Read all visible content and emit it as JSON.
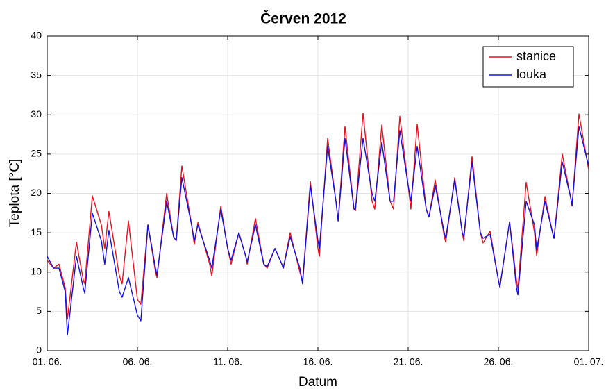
{
  "chart_data": {
    "type": "line",
    "title": "Červen 2012",
    "x_label": "Datum",
    "y_label": "Teplota [°C]",
    "x": [
      1,
      1.35,
      1.65,
      2,
      2.12,
      2.62,
      3,
      3.08,
      3.5,
      4,
      4.19,
      4.42,
      5,
      5.15,
      5.5,
      6,
      6.19,
      6.58,
      7,
      7.08,
      7.62,
      8,
      8.15,
      8.46,
      9,
      9.15,
      9.35,
      10,
      10.12,
      10.62,
      11,
      11.19,
      11.62,
      12,
      12.08,
      12.54,
      13,
      13.19,
      13.62,
      14,
      14.08,
      14.46,
      15,
      15.15,
      15.58,
      16,
      16.08,
      16.54,
      17,
      17.12,
      17.5,
      18,
      18.08,
      18.5,
      19,
      19.15,
      19.54,
      20,
      20.19,
      20.54,
      21,
      21.15,
      21.5,
      22,
      22.15,
      22.5,
      23,
      23.08,
      23.58,
      24,
      24.08,
      24.54,
      25,
      25.15,
      25.54,
      26,
      26.08,
      26.62,
      27,
      27.08,
      27.54,
      28,
      28.12,
      28.58,
      29,
      29.08,
      29.54,
      30,
      30.08,
      30.46,
      31
    ],
    "series": [
      {
        "name": "stanice",
        "color": "#e8101a",
        "values": [
          11.5,
          10.5,
          11,
          8,
          4,
          13.8,
          9,
          8.5,
          19.7,
          16,
          13,
          17.7,
          9.5,
          8.5,
          16.5,
          6.5,
          5.9,
          16,
          10,
          9.3,
          20,
          14.5,
          14,
          23.5,
          16,
          13.5,
          16.3,
          11,
          9.5,
          18.4,
          13,
          11,
          15,
          12,
          11,
          16.8,
          11,
          10.5,
          13,
          11,
          10.5,
          15,
          10,
          8.8,
          21.5,
          13,
          12,
          27,
          19,
          16.5,
          28.5,
          18,
          17.8,
          30.2,
          19,
          18,
          28.7,
          19,
          18,
          29.8,
          21,
          18,
          28.8,
          18,
          17,
          21.7,
          14.5,
          13.8,
          22,
          15,
          14,
          24.7,
          15,
          13.7,
          15.2,
          9,
          8.1,
          16.4,
          9,
          7.8,
          21.4,
          15,
          12.1,
          19.6,
          15,
          14.3,
          25,
          19.5,
          18.4,
          30.1,
          23
        ]
      },
      {
        "name": "louka",
        "color": "#1010e0",
        "values": [
          12,
          10.5,
          10.5,
          7.5,
          2,
          12,
          8,
          7.3,
          17.5,
          14,
          11,
          15.3,
          7.5,
          6.8,
          9.3,
          4.5,
          3.8,
          16,
          10.5,
          9.6,
          19,
          14.5,
          14,
          22,
          16,
          14,
          16,
          11.5,
          10.5,
          18,
          13,
          11.5,
          15,
          12,
          11.3,
          16,
          11,
          10.7,
          13,
          11,
          10.5,
          14.5,
          10.5,
          8.5,
          21,
          14,
          13,
          26,
          19,
          16.5,
          27,
          18,
          18,
          27,
          20,
          19,
          26.5,
          19,
          19,
          28,
          21,
          19,
          26,
          18,
          17,
          21,
          15,
          14.3,
          21.7,
          15,
          14.5,
          24,
          15,
          14.3,
          14.8,
          9,
          8.1,
          16.4,
          8,
          7.1,
          19,
          16,
          12.8,
          19,
          15,
          14.3,
          24,
          19.5,
          18.5,
          28.5,
          23.5
        ]
      }
    ],
    "xlim": [
      1,
      31
    ],
    "xticks": [
      {
        "value": 1,
        "label": "01. 06."
      },
      {
        "value": 6,
        "label": "06. 06."
      },
      {
        "value": 11,
        "label": "11. 06."
      },
      {
        "value": 16,
        "label": "16. 06."
      },
      {
        "value": 21,
        "label": "21. 06."
      },
      {
        "value": 26,
        "label": "26. 06."
      },
      {
        "value": 31,
        "label": "01. 07."
      }
    ],
    "ylim": [
      0,
      40
    ],
    "yticks": [
      0,
      5,
      10,
      15,
      20,
      25,
      30,
      35,
      40
    ],
    "grid": true,
    "legend": "upper right"
  }
}
